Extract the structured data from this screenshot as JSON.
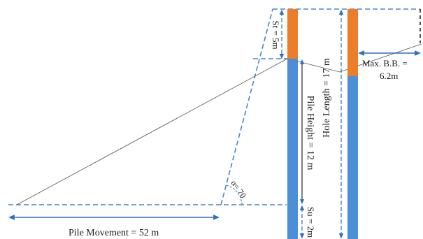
{
  "labels": {
    "pile_movement": "Pile Movement = 52 m",
    "st": "St = 5m",
    "pile_height": "Pile Height = 12 m",
    "hole_length": "Hole Length = 17 m",
    "su": "Su = 2m",
    "max_bb_line1": "Max. B.B. =",
    "max_bb_line2": "6.2m",
    "alpha": "α= 70"
  },
  "colors": {
    "dashed_line": "#4a86c8",
    "dimension_arrow": "#2f6fbf",
    "pile_orange": "#ee7d2a",
    "pile_blue": "#4d8fd6",
    "thin_line": "#555555",
    "black_dash": "#222222"
  }
}
